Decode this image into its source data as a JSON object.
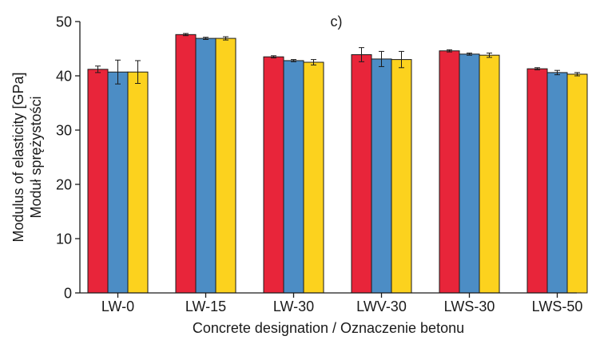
{
  "chart_data": {
    "type": "bar",
    "panel_label": "c)",
    "categories": [
      "LW-0",
      "LW-15",
      "LW-30",
      "LWV-30",
      "LWS-30",
      "LWS-50"
    ],
    "series": [
      {
        "color": "#E8253A",
        "values": [
          41.2,
          47.6,
          43.5,
          43.9,
          44.6,
          41.3
        ],
        "errors": [
          0.6,
          0.2,
          0.2,
          1.3,
          0.2,
          0.2
        ]
      },
      {
        "color": "#4C8DC5",
        "values": [
          40.7,
          46.9,
          42.8,
          43.1,
          44.0,
          40.6
        ],
        "errors": [
          2.2,
          0.2,
          0.2,
          1.4,
          0.2,
          0.4
        ]
      },
      {
        "color": "#FCD21E",
        "values": [
          40.7,
          46.9,
          42.5,
          43.0,
          43.8,
          40.3
        ],
        "errors": [
          2.1,
          0.3,
          0.5,
          1.5,
          0.4,
          0.3
        ]
      }
    ],
    "xlabel": "Concrete designation / Oznaczenie betonu",
    "ylabel_lines": [
      "Modulus of elasticity [GPa]",
      "Moduł sprężystości"
    ],
    "ylim": [
      0,
      50
    ],
    "yticks": [
      0,
      10,
      20,
      30,
      40,
      50
    ],
    "grid": false,
    "legend": "none"
  }
}
